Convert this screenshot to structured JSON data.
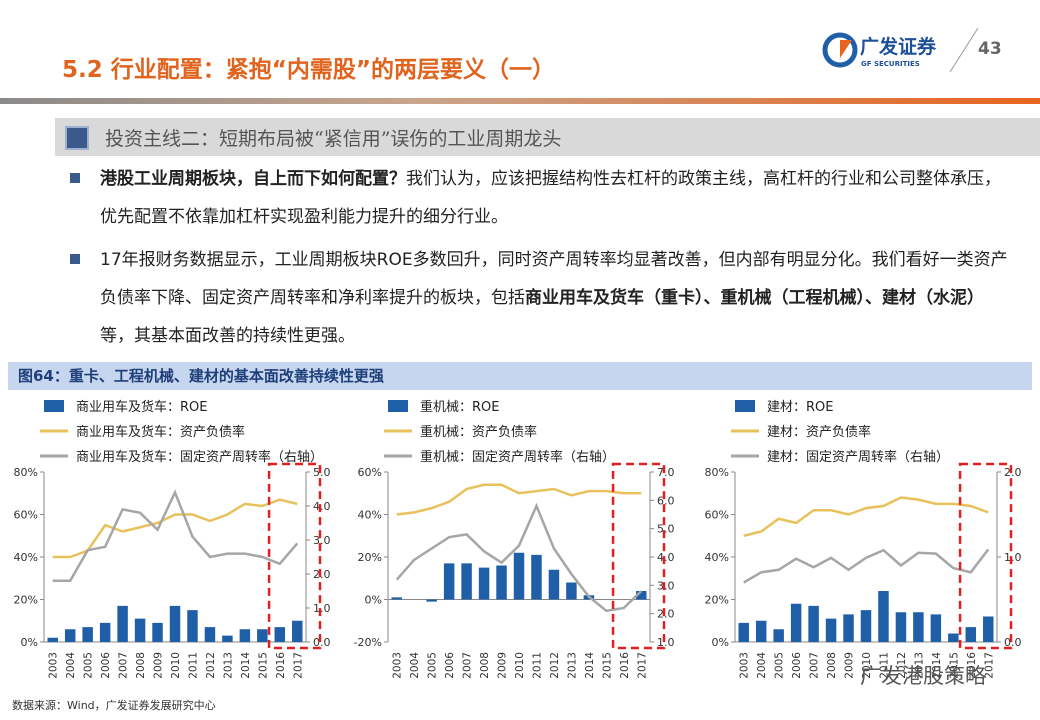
{
  "header": {
    "title": "5.2 行业配置：紧抱“内需股”的两层要义（一）",
    "logo_cn": "广发证券",
    "logo_en": "GF SECURITIES",
    "page_number": "43"
  },
  "section_heading": "投资主线二：短期布局被“紧信用”误伤的工业周期龙头",
  "bullets": [
    [
      {
        "text": "港股工业周期板块，自上而下如何配置？",
        "bold": true
      },
      {
        "text": "我们认为，应该把握结构性去杠杆的政策主线，高杠杆的行业和公司整体承压，优先配置不依靠加杠杆实现盈利能力提升的细分行业。",
        "bold": false
      }
    ],
    [
      {
        "text": "17年报财务数据显示，工业周期板块ROE多数回升，同时资产周转率均显著改善，但内部有明显分化。我们看好一类资产负债率下降、固定资产周转率和净利率提升的板块，包括",
        "bold": false
      },
      {
        "text": "商业用车及货车（重卡）、重机械（工程机械）、建材（水泥）",
        "bold": true
      },
      {
        "text": "等，其基本面改善的持续性更强。",
        "bold": false
      }
    ]
  ],
  "figure_title": "图64：重卡、工程机械、建材的基本面改善持续性更强",
  "source": "数据来源：Wind，广发证券发展研究中心",
  "watermark": "广发港股策略",
  "chart_data": [
    {
      "type": "combo",
      "categories": [
        "2003",
        "2004",
        "2005",
        "2006",
        "2007",
        "2008",
        "2009",
        "2010",
        "2011",
        "2012",
        "2013",
        "2014",
        "2015",
        "2016",
        "2017"
      ],
      "ylim": [
        0,
        80
      ],
      "yticks": [
        {
          "value": 0,
          "label": "0%"
        },
        {
          "value": 20,
          "label": "20%"
        },
        {
          "value": 40,
          "label": "40%"
        },
        {
          "value": 60,
          "label": "60%"
        },
        {
          "value": 80,
          "label": "80%"
        }
      ],
      "y2lim": [
        0,
        5
      ],
      "y2ticks": [
        {
          "value": 0,
          "label": "0.0"
        },
        {
          "value": 1,
          "label": "1.0"
        },
        {
          "value": 2,
          "label": "2.0"
        },
        {
          "value": 3,
          "label": "3.0"
        },
        {
          "value": 4,
          "label": "4.0"
        },
        {
          "value": 5,
          "label": "5.0"
        }
      ],
      "series": [
        {
          "name": "商业用车及货车：ROE",
          "type": "bar",
          "color": "#1f5fa8",
          "values": [
            2,
            6,
            7,
            9,
            17,
            11,
            9,
            17,
            15,
            7,
            3,
            6,
            6,
            7,
            10
          ]
        },
        {
          "name": "商业用车及货车：资产负债率",
          "type": "line",
          "color": "#e8c15a",
          "values": [
            40,
            40,
            43,
            55,
            52,
            54,
            56,
            60,
            60,
            57,
            60,
            65,
            64,
            67,
            65
          ]
        },
        {
          "name": "商业用车及货车：固定资产周转率（右轴）",
          "type": "line",
          "axis": "y2",
          "color": "#a6a6a6",
          "values": [
            1.8,
            1.8,
            2.7,
            2.8,
            3.9,
            3.8,
            3.3,
            4.4,
            3.1,
            2.5,
            2.6,
            2.6,
            2.5,
            2.3,
            2.9
          ]
        }
      ]
    },
    {
      "type": "combo",
      "categories": [
        "2003",
        "2004",
        "2005",
        "2006",
        "2007",
        "2008",
        "2009",
        "2010",
        "2011",
        "2012",
        "2013",
        "2014",
        "2015",
        "2016",
        "2017"
      ],
      "ylim": [
        -20,
        60
      ],
      "yticks": [
        {
          "value": -20,
          "label": "-20%"
        },
        {
          "value": 0,
          "label": "0%"
        },
        {
          "value": 20,
          "label": "20%"
        },
        {
          "value": 40,
          "label": "40%"
        },
        {
          "value": 60,
          "label": "60%"
        }
      ],
      "y2lim": [
        1,
        7
      ],
      "y2ticks": [
        {
          "value": 1,
          "label": "1.0"
        },
        {
          "value": 2,
          "label": "2.0"
        },
        {
          "value": 3,
          "label": "3.0"
        },
        {
          "value": 4,
          "label": "4.0"
        },
        {
          "value": 5,
          "label": "5.0"
        },
        {
          "value": 6,
          "label": "6.0"
        },
        {
          "value": 7,
          "label": "7.0"
        }
      ],
      "series": [
        {
          "name": "重机械：ROE",
          "type": "bar",
          "color": "#1f5fa8",
          "values": [
            1,
            0,
            -1,
            17,
            17,
            15,
            16,
            22,
            21,
            14,
            8,
            2,
            0,
            0,
            4
          ]
        },
        {
          "name": "重机械：资产负债率",
          "type": "line",
          "color": "#e8c15a",
          "values": [
            40,
            41,
            43,
            46,
            52,
            54,
            54,
            50,
            51,
            52,
            49,
            51,
            51,
            50,
            50
          ]
        },
        {
          "name": "重机械：固定资产周转率（右轴）",
          "type": "line",
          "axis": "y2",
          "color": "#a6a6a6",
          "values": [
            3.2,
            3.9,
            4.3,
            4.7,
            4.8,
            4.2,
            3.8,
            4.4,
            5.8,
            4.3,
            3.4,
            2.6,
            2.1,
            2.2,
            2.8
          ]
        }
      ]
    },
    {
      "type": "combo",
      "categories": [
        "2003",
        "2004",
        "2005",
        "2006",
        "2007",
        "2008",
        "2009",
        "2010",
        "2011",
        "2012",
        "2013",
        "2014",
        "2015",
        "2016",
        "2017"
      ],
      "ylim": [
        0,
        80
      ],
      "yticks": [
        {
          "value": 0,
          "label": "0%"
        },
        {
          "value": 20,
          "label": "20%"
        },
        {
          "value": 40,
          "label": "40%"
        },
        {
          "value": 60,
          "label": "60%"
        },
        {
          "value": 80,
          "label": "80%"
        }
      ],
      "y2lim": [
        0,
        2
      ],
      "y2ticks": [
        {
          "value": 0,
          "label": "0.0"
        },
        {
          "value": 1,
          "label": "1.0"
        },
        {
          "value": 2,
          "label": "2.0"
        }
      ],
      "series": [
        {
          "name": "建材：ROE",
          "type": "bar",
          "color": "#1f5fa8",
          "values": [
            9,
            10,
            6,
            18,
            17,
            11,
            13,
            15,
            24,
            14,
            14,
            13,
            4,
            7,
            12
          ]
        },
        {
          "name": "建材：资产负债率",
          "type": "line",
          "color": "#e8c15a",
          "values": [
            50,
            52,
            58,
            56,
            62,
            62,
            60,
            63,
            64,
            68,
            67,
            65,
            65,
            64,
            61
          ]
        },
        {
          "name": "建材：固定资产周转率（右轴）",
          "type": "line",
          "axis": "y2",
          "color": "#a6a6a6",
          "values": [
            0.7,
            0.82,
            0.85,
            0.98,
            0.88,
            0.99,
            0.85,
            0.99,
            1.08,
            0.9,
            1.05,
            1.04,
            0.87,
            0.82,
            1.09
          ]
        }
      ]
    }
  ]
}
